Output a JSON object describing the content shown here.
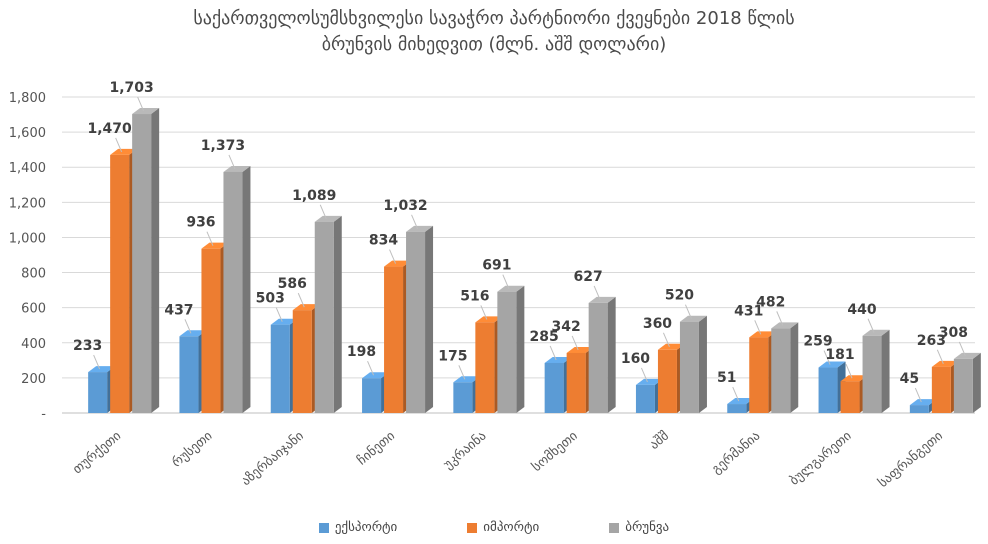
{
  "chart_data": {
    "type": "bar",
    "title_line1": "საქართველოსუმსხვილესი სავაჭრო პარტნიორი ქვეყნები 2018 წლის",
    "title_line2": "ბრუნვის მიხედვით (მლნ. აშშ დოლარი)",
    "categories": [
      "თურქეთი",
      "რუსეთი",
      "აზერბაიჯანი",
      "ჩინეთი",
      "უკრაინა",
      "სომხეთი",
      "აშშ",
      "გერმანია",
      "ბულგარეთი",
      "საფრანგეთი"
    ],
    "series": [
      {
        "name": "ექსპორტი",
        "color": "#5B9BD5",
        "values": [
          233,
          437,
          503,
          198,
          175,
          285,
          160,
          51,
          259,
          45
        ]
      },
      {
        "name": "იმპორტი",
        "color": "#ED7D31",
        "values": [
          1470,
          936,
          586,
          834,
          516,
          342,
          360,
          431,
          181,
          263
        ]
      },
      {
        "name": "ბრუნვა",
        "color": "#A5A5A5",
        "values": [
          1703,
          1373,
          1089,
          1032,
          691,
          627,
          520,
          482,
          440,
          308
        ]
      }
    ],
    "y_ticks": [
      "-",
      "200",
      "400",
      "600",
      "800",
      "1,000",
      "1,200",
      "1,400",
      "1,600",
      "1,800"
    ],
    "ylim": [
      0,
      1800
    ],
    "grid": true,
    "legend_position": "bottom"
  }
}
